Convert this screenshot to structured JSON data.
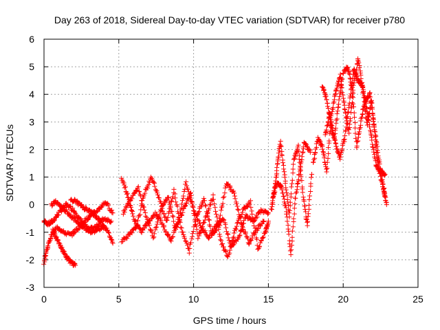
{
  "chart_data": {
    "type": "scatter",
    "title": "Day 263 of 2018, Sidereal Day-to-day VTEC variation (SDTVAR) for receiver p780",
    "xlabel": "GPS time / hours",
    "ylabel": "SDTVAR / TECUs",
    "xlim": [
      0,
      25
    ],
    "ylim": [
      -3,
      6
    ],
    "x_ticks": [
      "0",
      "5",
      "10",
      "15",
      "20",
      "25"
    ],
    "y_ticks": [
      "-3",
      "-2",
      "-1",
      "0",
      "1",
      "2",
      "3",
      "4",
      "5",
      "6"
    ],
    "grid": true,
    "marker": "+",
    "color": "#ff0000",
    "tracks": [
      {
        "x": [
          0.0,
          0.3,
          0.6,
          1.0,
          1.5,
          2.0,
          2.5,
          3.0,
          3.5,
          4.0,
          4.5
        ],
        "y": [
          -0.6,
          -0.7,
          -0.6,
          -0.3,
          0.0,
          -0.2,
          -0.6,
          -0.9,
          -0.8,
          -0.5,
          -0.6
        ]
      },
      {
        "x": [
          0.5,
          0.8,
          1.2,
          1.6,
          2.0,
          2.4,
          2.8,
          3.2,
          3.6,
          4.0
        ],
        "y": [
          0.0,
          0.1,
          -0.1,
          -0.3,
          -0.5,
          -0.7,
          -0.9,
          -1.0,
          -0.9,
          -0.8
        ]
      },
      {
        "x": [
          0.0,
          0.2,
          0.5,
          0.9,
          1.3,
          1.8,
          2.2,
          2.7,
          3.1,
          3.6,
          4.1,
          4.6
        ],
        "y": [
          -2.1,
          -1.6,
          -1.1,
          -0.8,
          -1.0,
          -1.1,
          -0.9,
          -0.6,
          -0.4,
          -0.2,
          0.1,
          -0.3
        ]
      },
      {
        "x": [
          0.6,
          0.9,
          1.2,
          1.5,
          1.8,
          2.1
        ],
        "y": [
          -0.9,
          -1.3,
          -1.6,
          -1.9,
          -2.1,
          -2.2
        ]
      },
      {
        "x": [
          1.8,
          2.2,
          2.6,
          3.0,
          3.4,
          3.8,
          4.2,
          4.6
        ],
        "y": [
          0.2,
          0.1,
          -0.1,
          -0.2,
          -0.4,
          -0.6,
          -0.9,
          -1.4
        ]
      },
      {
        "x": [
          5.2,
          5.6,
          6.0,
          6.5,
          7.0,
          7.5,
          8.0,
          8.5,
          9.0,
          9.5,
          10.0,
          10.5,
          11.0,
          11.5,
          12.0,
          12.5,
          13.0,
          13.5,
          14.0,
          14.5,
          15.0
        ],
        "y": [
          1.0,
          0.3,
          -0.5,
          -1.0,
          -0.6,
          -0.3,
          -0.8,
          -1.3,
          -0.5,
          0.8,
          -0.2,
          -0.8,
          -1.2,
          -0.9,
          -0.5,
          -1.5,
          -1.2,
          -0.4,
          -0.6,
          -0.2,
          -0.3
        ]
      },
      {
        "x": [
          5.2,
          5.7,
          6.2,
          6.7,
          7.2,
          7.7,
          8.2,
          8.7,
          9.2,
          9.7,
          10.2,
          10.7,
          11.2,
          11.7,
          12.2,
          12.7,
          13.2,
          13.7,
          14.2,
          14.7
        ],
        "y": [
          -1.3,
          -1.1,
          -0.8,
          0.4,
          1.0,
          0.2,
          -0.6,
          0.5,
          -0.9,
          -1.7,
          -0.4,
          0.2,
          -1.0,
          -0.6,
          0.8,
          0.4,
          -0.7,
          -1.4,
          -0.9,
          -0.6
        ]
      },
      {
        "x": [
          5.3,
          5.8,
          6.3,
          6.8,
          7.3,
          7.8,
          8.3,
          8.8,
          9.3,
          9.8,
          10.3,
          10.8,
          11.3,
          11.8,
          12.3,
          12.8,
          13.3,
          13.8,
          14.3,
          14.8,
          15.0
        ],
        "y": [
          -0.3,
          0.2,
          0.6,
          -0.4,
          -1.2,
          -0.2,
          0.3,
          -0.9,
          -0.2,
          0.4,
          -1.2,
          -0.5,
          0.3,
          -1.3,
          -1.9,
          -0.9,
          -0.2,
          0.1,
          -1.6,
          -1.0,
          -0.6
        ]
      },
      {
        "x": [
          15.2,
          15.4,
          15.6,
          15.8,
          16.1,
          16.4,
          16.7,
          17.0,
          17.3,
          17.6,
          17.9
        ],
        "y": [
          -0.2,
          0.5,
          1.4,
          2.3,
          1.0,
          -0.4,
          1.6,
          2.1,
          0.4,
          -0.8,
          1.1
        ]
      },
      {
        "x": [
          15.3,
          15.6,
          15.9,
          16.2,
          16.5,
          16.8,
          17.1,
          17.4,
          17.8
        ],
        "y": [
          0.3,
          0.8,
          0.6,
          -0.2,
          -1.8,
          0.2,
          1.2,
          2.3,
          1.9
        ]
      },
      {
        "x": [
          18.0,
          18.3,
          18.6,
          18.9,
          19.2,
          19.5,
          19.8,
          20.1,
          20.4,
          20.7,
          21.0,
          21.3,
          21.6,
          21.9,
          22.2,
          22.5,
          22.8
        ],
        "y": [
          1.5,
          2.4,
          2.1,
          1.2,
          3.2,
          4.1,
          4.7,
          3.5,
          2.6,
          4.3,
          5.3,
          4.2,
          2.9,
          3.8,
          2.0,
          1.0,
          0.3
        ]
      },
      {
        "x": [
          18.8,
          19.1,
          19.4,
          19.7,
          20.0,
          20.3,
          20.6,
          20.9,
          21.2,
          21.5,
          21.8,
          22.1,
          22.4,
          22.7,
          22.9
        ],
        "y": [
          2.5,
          3.3,
          2.4,
          3.7,
          4.8,
          5.0,
          4.2,
          2.1,
          3.1,
          3.8,
          4.0,
          2.7,
          1.6,
          0.6,
          0.0
        ]
      },
      {
        "x": [
          18.6,
          18.9,
          19.2,
          19.5,
          19.8,
          20.1,
          20.4,
          20.7,
          21.0,
          21.3,
          21.6,
          21.9,
          22.2,
          22.5,
          22.8
        ],
        "y": [
          4.3,
          3.8,
          2.8,
          2.2,
          1.7,
          2.4,
          3.6,
          4.9,
          4.5,
          4.3,
          3.4,
          2.4,
          1.4,
          1.2,
          1.1
        ]
      }
    ]
  }
}
